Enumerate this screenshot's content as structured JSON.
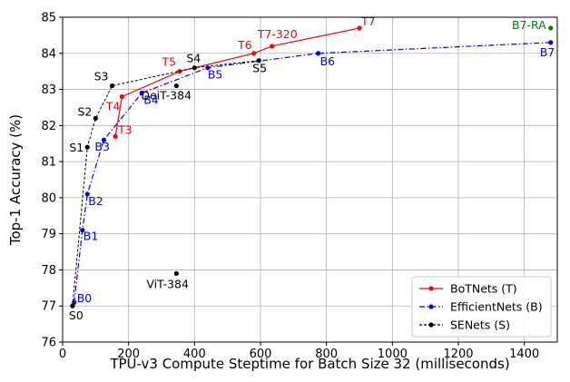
{
  "chart_data": {
    "type": "line",
    "title": "",
    "xlabel": "TPU-v3 Compute Steptime for Batch Size 32 (milliseconds)",
    "ylabel": "Top-1 Accuracy (%)",
    "xlim": [
      0,
      1500
    ],
    "ylim": [
      76,
      85
    ],
    "xticks": [
      "0",
      "200",
      "400",
      "600",
      "800",
      "1000",
      "1200",
      "1400"
    ],
    "yticks": [
      "76",
      "77",
      "78",
      "79",
      "80",
      "81",
      "82",
      "83",
      "84",
      "85"
    ],
    "grid": true,
    "legend_position": "bottom-right",
    "series": [
      {
        "name": "BoTNets (T)",
        "color": "#ff0000",
        "line_style": "solid",
        "points": [
          {
            "x": 160,
            "y": 81.7,
            "label": "T3"
          },
          {
            "x": 180,
            "y": 82.8,
            "label": "T4"
          },
          {
            "x": 355,
            "y": 83.5,
            "label": "T5"
          },
          {
            "x": 580,
            "y": 84.0,
            "label": "T6"
          },
          {
            "x": 635,
            "y": 84.2,
            "label": "T7-320"
          },
          {
            "x": 900,
            "y": 84.7,
            "label": "T7"
          }
        ]
      },
      {
        "name": "EfficientNets (B)",
        "color": "#0000ff",
        "line_style": "dashdot",
        "points": [
          {
            "x": 35,
            "y": 77.1,
            "label": "B0"
          },
          {
            "x": 60,
            "y": 79.1,
            "label": "B1"
          },
          {
            "x": 75,
            "y": 80.1,
            "label": "B2"
          },
          {
            "x": 125,
            "y": 81.6,
            "label": "B3"
          },
          {
            "x": 240,
            "y": 82.9,
            "label": "B4"
          },
          {
            "x": 440,
            "y": 83.6,
            "label": "B5"
          },
          {
            "x": 775,
            "y": 84.0,
            "label": "B6"
          },
          {
            "x": 1480,
            "y": 84.3,
            "label": "B7"
          }
        ]
      },
      {
        "name": "SENets (S)",
        "color": "#000000",
        "line_style": "dashed",
        "points": [
          {
            "x": 30,
            "y": 77.0,
            "label": "S0"
          },
          {
            "x": 75,
            "y": 81.4,
            "label": "S1"
          },
          {
            "x": 100,
            "y": 82.2,
            "label": "S2"
          },
          {
            "x": 150,
            "y": 83.1,
            "label": "S3"
          },
          {
            "x": 400,
            "y": 83.6,
            "label": "S4"
          },
          {
            "x": 595,
            "y": 83.8,
            "label": "S5"
          }
        ]
      }
    ],
    "extra_points": [
      {
        "x": 345,
        "y": 83.1,
        "label": "DeiT-384",
        "color": "#000000"
      },
      {
        "x": 345,
        "y": 77.9,
        "label": "ViT-384",
        "color": "#000000"
      },
      {
        "x": 1480,
        "y": 84.7,
        "label": "B7-RA",
        "color": "#008000"
      }
    ]
  }
}
